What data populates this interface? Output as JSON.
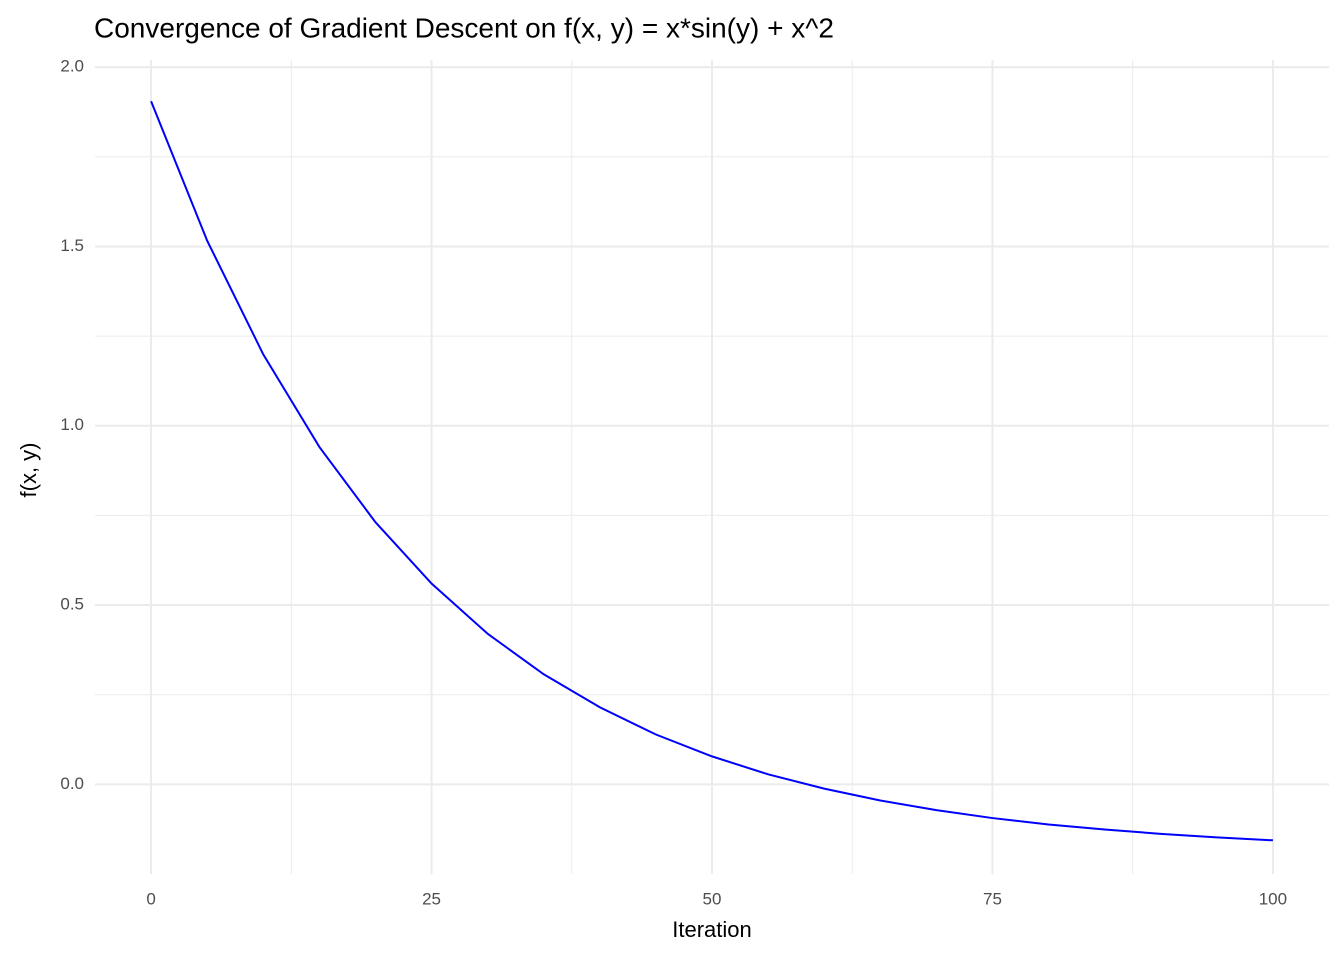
{
  "chart_data": {
    "type": "line",
    "title": "Convergence of Gradient Descent on f(x, y) = x*sin(y) + x^2",
    "xlabel": "Iteration",
    "ylabel": "f(x, y)",
    "x": [
      0,
      5,
      10,
      15,
      20,
      25,
      30,
      35,
      40,
      45,
      50,
      55,
      60,
      65,
      70,
      75,
      80,
      85,
      90,
      95,
      100
    ],
    "series": [
      {
        "color": "#0000ff",
        "values": [
          1.905,
          1.516,
          1.199,
          0.941,
          0.731,
          0.56,
          0.42,
          0.307,
          0.215,
          0.139,
          0.078,
          0.028,
          -0.012,
          -0.045,
          -0.072,
          -0.094,
          -0.112,
          -0.126,
          -0.138,
          -0.148,
          -0.156
        ]
      }
    ],
    "xlim": [
      -5,
      105
    ],
    "ylim": [
      -0.25,
      2.02
    ],
    "xticks": [
      0,
      25,
      50,
      75,
      100
    ],
    "yticks": [
      {
        "value": 0,
        "label": "0.0"
      },
      0.5,
      {
        "value": 1,
        "label": "1.0"
      },
      1.5,
      {
        "value": 2,
        "label": "2.0"
      }
    ],
    "xminor": [
      12.5,
      37.5,
      62.5,
      87.5
    ],
    "yminor": [
      0.25,
      0.75,
      1.25,
      1.75
    ],
    "grid": true,
    "grid_color": "#ebebeb"
  }
}
